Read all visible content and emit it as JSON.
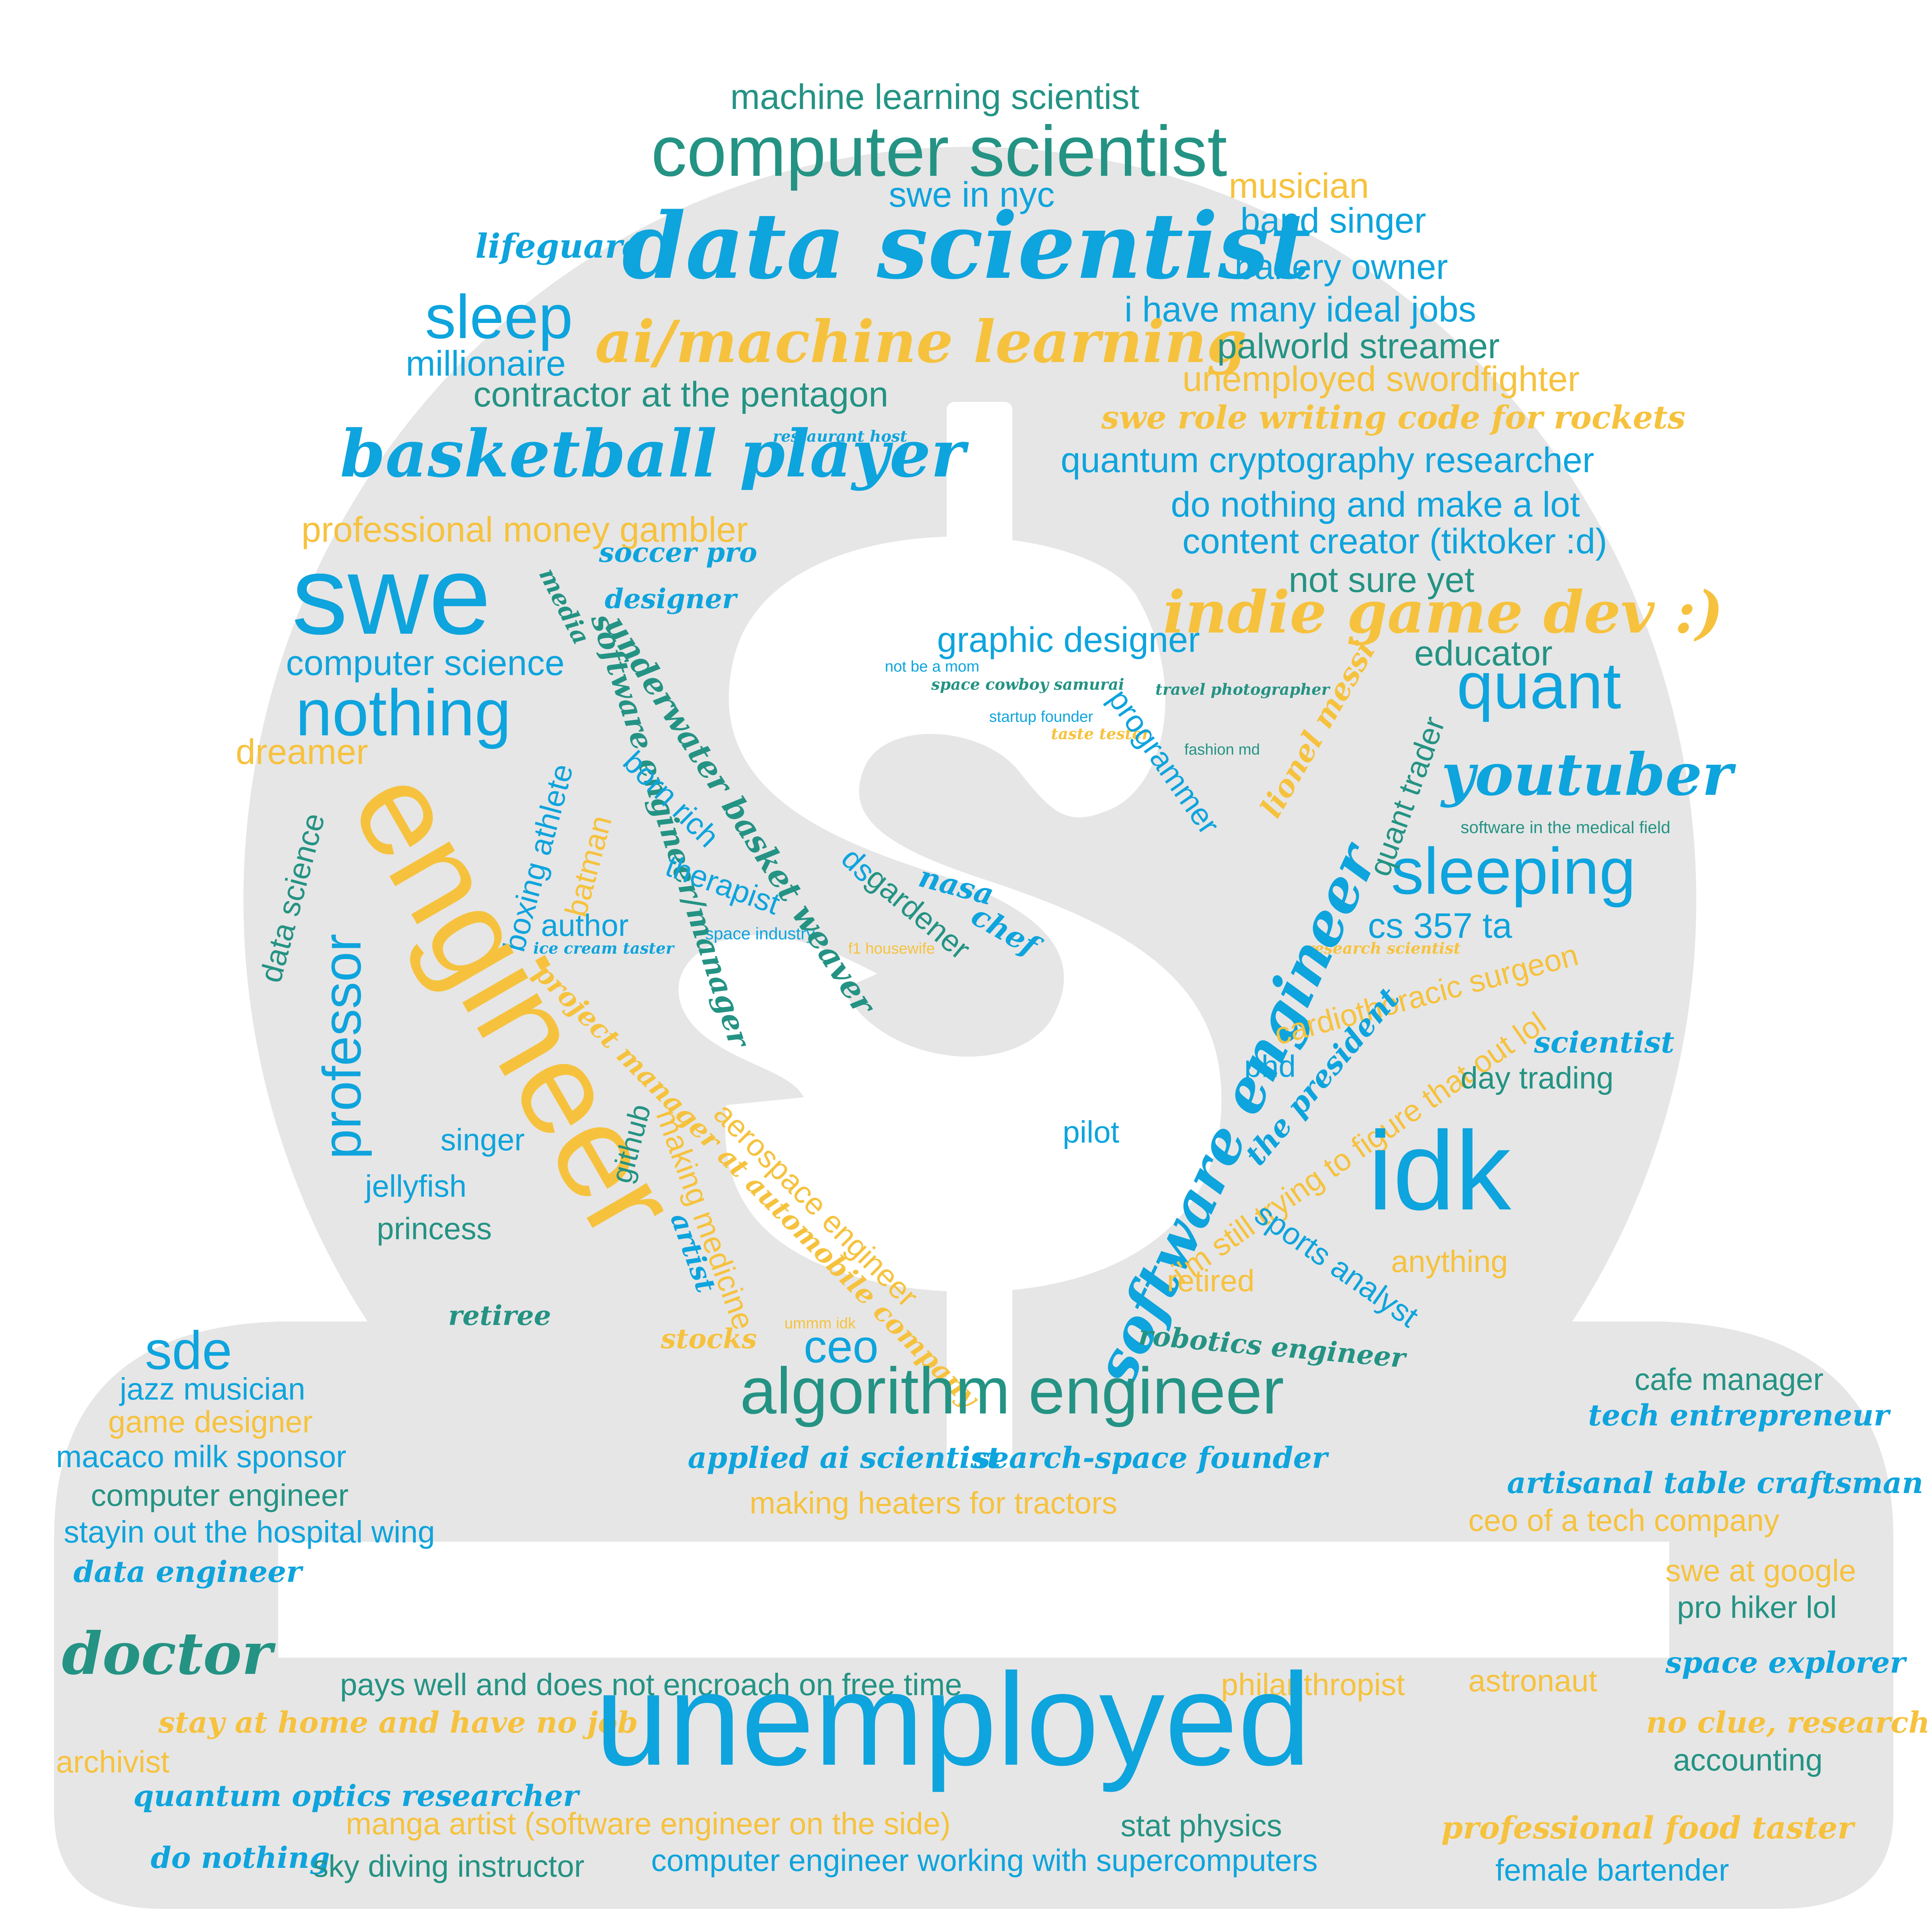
{
  "colors": {
    "blue": "#0ea4dd",
    "teal": "#249384",
    "yellow": "#f6c23e",
    "shape_fill": "#e6e6e6",
    "background": "#ffffff"
  },
  "shape_icon": "money-bag-dollar-icon",
  "words": {
    "machine_learning_scientist": "machine learning scientist",
    "computer_scientist": "computer scientist",
    "swe_in_nyc": "swe in nyc",
    "musician": "musician",
    "band_singer": "band singer",
    "lifeguard": "lifeguard",
    "data_scientist": "data scientist",
    "bakery_owner": "bakery owner",
    "i_have_many_ideal_jobs": "i have many ideal jobs",
    "sleep": "sleep",
    "ai_machine_learning": "ai/machine learning",
    "palworld_streamer": "palworld streamer",
    "millionaire": "millionaire",
    "unemployed_swordfighter": "unemployed swordfighter",
    "contractor_at_the_pentagon": "contractor at the pentagon",
    "swe_role_rockets": "swe role writing code for rockets",
    "restaurant_host": "restaurant host",
    "basketball_player": "basketball player",
    "quantum_cryptography_researcher": "quantum cryptography researcher",
    "do_nothing_and_make_a_lot": "do nothing and make a lot",
    "professional_money_gambler": "professional money gambler",
    "content_creator": "content creator (tiktoker :d)",
    "soccer_pro": "soccer pro",
    "swe": "swe",
    "not_sure_yet": "not sure yet",
    "designer": "designer",
    "indie_game_dev": "indie game dev :)",
    "media": "media",
    "computer_science": "computer science",
    "graphic_designer": "graphic designer",
    "educator": "educator",
    "not_be_a_mom": "not be a mom",
    "space_cowboy_samurai": "space cowboy samurai",
    "travel_photographer": "travel photographer",
    "quant": "quant",
    "nothing": "nothing",
    "startup_founder": "startup founder",
    "taste_tester": "taste tester",
    "dreamer": "dreamer",
    "fashion_md": "fashion md",
    "youtuber": "youtuber",
    "software_in_the_medical_field": "software in the medical field",
    "sleeping": "sleeping",
    "cs_357_ta": "cs 357 ta",
    "author": "author",
    "space_industry": "space industry",
    "ice_cream_taster": "ice cream taster",
    "f1_housewife": "f1 housewife",
    "research_scientist": "research scientist",
    "nasa": "nasa",
    "chef": "chef",
    "underwater_basket_weaver": "underwater basket weaver",
    "software_engineer_manager": "software engineer/manager",
    "born_rich": "born rich",
    "therapist": "therapist",
    "ds": "ds",
    "gardener": "gardener",
    "boxing_athlete": "boxing athlete",
    "batman": "batman",
    "data_science": "data science",
    "professor": "professor",
    "engineer": "engineer",
    "programmer": "programmer",
    "lionel_messi": "lionel messi",
    "quant_trader": "quant trader",
    "software_engineer": "software engineer",
    "cardiothoracic_surgeon": "cardiothoracic surgeon",
    "figure_that_out": "i'm still trying to figure that out lol",
    "the_president": "the president",
    "scientist": "scientist",
    "phd": "phd",
    "day_trading": "day trading",
    "project_manager": "project manager at automobile company",
    "github": "github",
    "singer": "singer",
    "pilot": "pilot",
    "jellyfish": "jellyfish",
    "idk": "idk",
    "princess": "princess",
    "making_medicine": "making medicine",
    "aerospace_engineer": "aerospace engineer",
    "sports_analyst": "sports analyst",
    "artist": "artist",
    "anything": "anything",
    "retired": "retired",
    "ummm_idk": "ummm idk",
    "retiree": "retiree",
    "stocks": "stocks",
    "robotics_engineer": "robotics engineer",
    "sde": "sde",
    "ceo": "ceo",
    "jazz_musician": "jazz musician",
    "algorithm_engineer": "algorithm engineer",
    "cafe_manager": "cafe manager",
    "game_designer": "game designer",
    "tech_entrepreneur": "tech entrepreneur",
    "macaco_milk_sponsor": "macaco milk sponsor",
    "applied_ai_scientist": "applied ai scientist",
    "search_space_founder": "search-space founder",
    "artisanal_table_craftsman": "artisanal table craftsman",
    "computer_engineer": "computer engineer",
    "making_heaters_for_tractors": "making heaters for tractors",
    "ceo_of_a_tech_company": "ceo of a tech company",
    "stayin_out": "stayin out the hospital wing",
    "data_engineer": "data engineer",
    "swe_at_google": "swe at google",
    "pro_hiker_lol": "pro hiker lol",
    "doctor": "doctor",
    "space_explorer": "space explorer",
    "pays_well": "pays well and does not encroach on free time",
    "philanthropist": "philanthropist",
    "astronaut": "astronaut",
    "stay_at_home": "stay at home and have no job",
    "unemployed": "unemployed",
    "no_clue_research": "no clue, research",
    "archivist": "archivist",
    "accounting": "accounting",
    "quantum_optics_researcher": "quantum optics researcher",
    "manga_artist": "manga artist (software engineer on the side)",
    "stat_physics": "stat physics",
    "professional_food_taster": "professional food taster",
    "do_nothing": "do nothing",
    "sky_diving_instructor": "sky diving instructor",
    "computer_engineer_supercomputers": "computer engineer working with supercomputers",
    "female_bartender": "female bartender"
  }
}
